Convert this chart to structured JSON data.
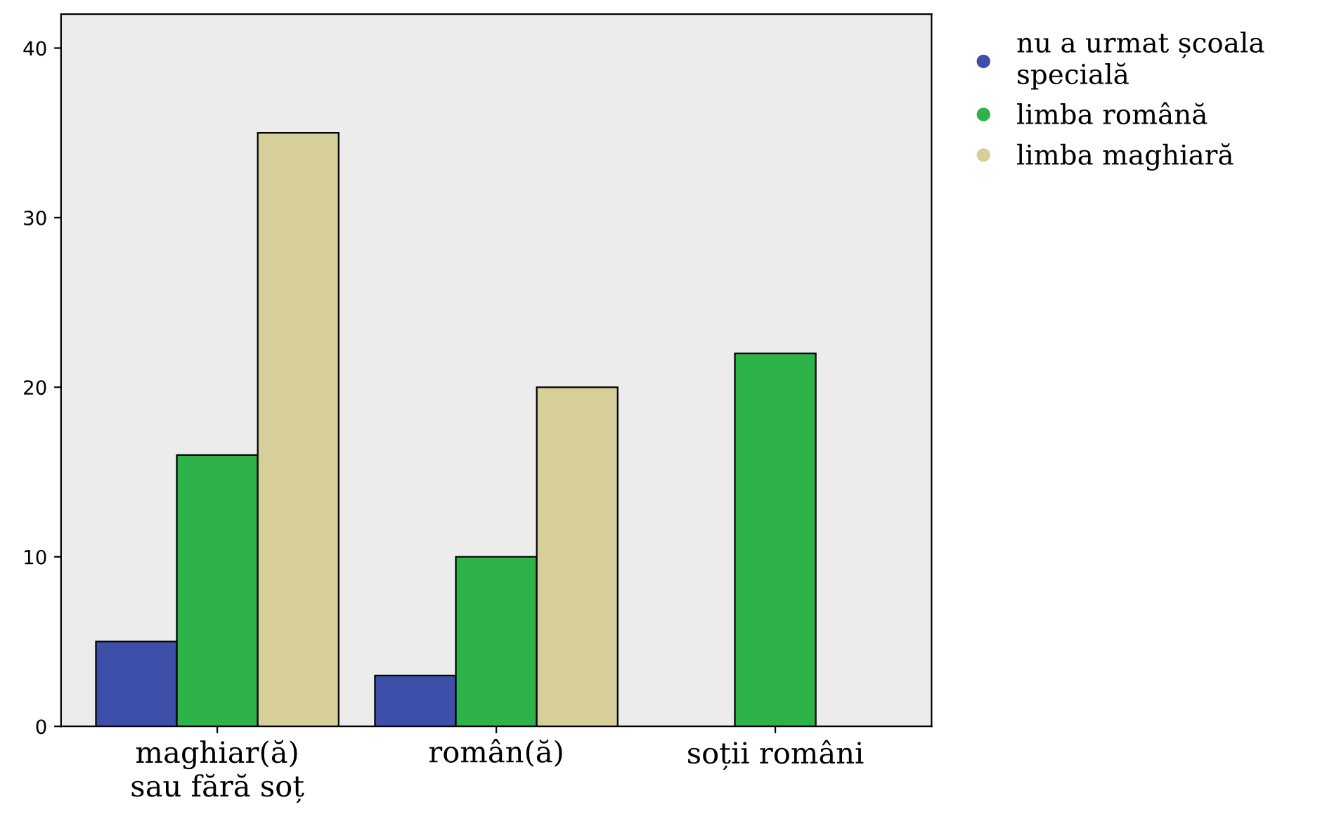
{
  "chart_data": {
    "type": "bar",
    "categories": [
      "maghiar(ă)\nsau fără soț",
      "român(ă)",
      "soții români"
    ],
    "series": [
      {
        "name": "nu a urmat școala\nspecială",
        "color": "#3d4fa8",
        "values": [
          5,
          3,
          null
        ]
      },
      {
        "name": "limba română",
        "color": "#2db34a",
        "values": [
          16,
          10,
          22
        ]
      },
      {
        "name": "limba maghiară",
        "color": "#d6cf9a",
        "values": [
          35,
          20,
          null
        ]
      }
    ],
    "ylim": [
      0,
      42
    ],
    "yticks": [
      0,
      10,
      20,
      30,
      40
    ],
    "grid": false,
    "legend": "top right"
  }
}
